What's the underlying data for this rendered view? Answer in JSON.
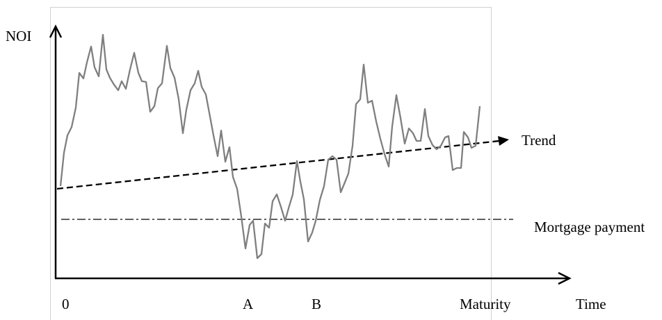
{
  "axes": {
    "y_label": "NOI",
    "x_label": "Time"
  },
  "x_markers": {
    "origin": "0",
    "a": "A",
    "b": "B",
    "maturity": "Maturity"
  },
  "lines": {
    "trend": "Trend",
    "mortgage": "Mortgage payment"
  }
}
